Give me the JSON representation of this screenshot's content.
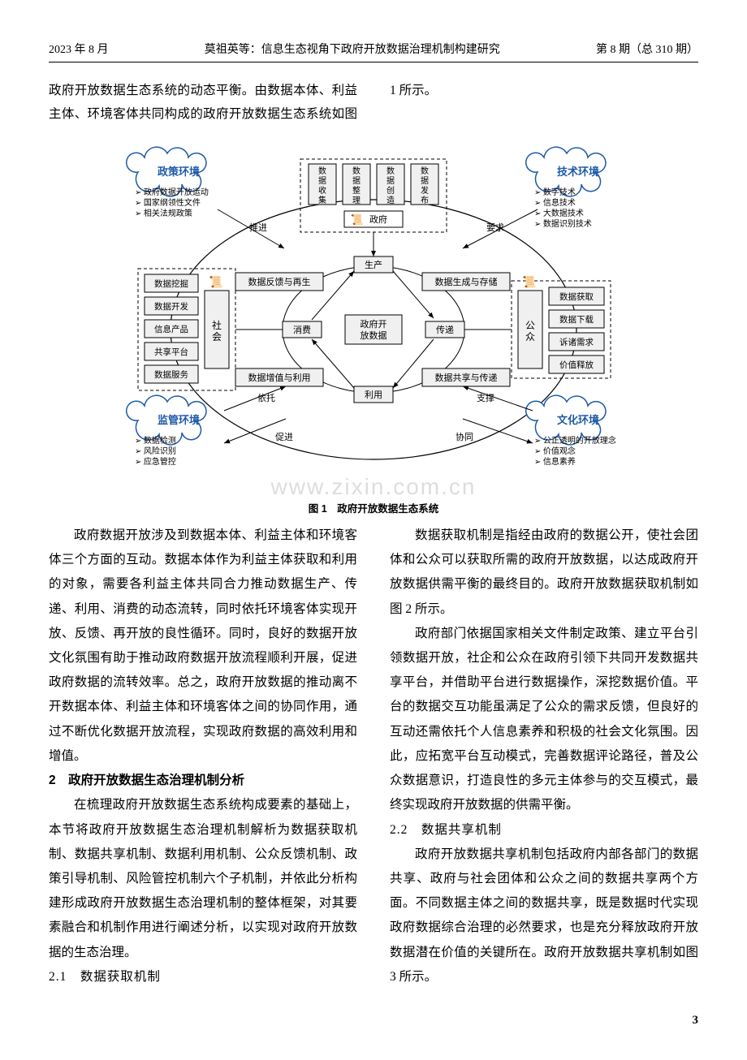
{
  "header": {
    "left": "2023 年 8 月",
    "center": "莫祖英等：信息生态视角下政府开放数据治理机制构建研究",
    "right": "第 8 期（总 310 期）"
  },
  "intro": "政府开放数据生态系统的动态平衡。由数据本体、利益主体、环境客体共同构成的政府开放数据生态系统如图 1 所示。",
  "figure": {
    "caption": "图 1　政府开放数据生态系统",
    "watermark": "www.zixin.com.cn",
    "colors": {
      "boxFill": "#f0f0f0",
      "boxStroke": "#000000",
      "line": "#000000",
      "cloudFill": "#ffffff",
      "cloudStroke": "#1e5aa8",
      "cloudText": "#1e5aa8",
      "bg": "#ffffff"
    },
    "clouds": {
      "policy": {
        "title": "政策环境",
        "items": [
          "政府数据开放运动",
          "国家纲领性文件",
          "相关法规政策"
        ]
      },
      "tech": {
        "title": "技术环境",
        "items": [
          "数字技术",
          "信息技术",
          "大数据技术",
          "数据识别技术"
        ]
      },
      "reg": {
        "title": "监管环境",
        "items": [
          "数据检测",
          "风险识别",
          "应急管控"
        ]
      },
      "culture": {
        "title": "文化环境",
        "items": [
          "公正透明的开放理念",
          "价值观念",
          "信息素养"
        ]
      }
    },
    "topBoxes": [
      "数据收集",
      "数据整理",
      "数据创造",
      "数据发布"
    ],
    "govLabel": "政府",
    "leftBoxes": [
      "数据挖掘",
      "数据开发",
      "信息产品",
      "共享平台",
      "数据服务"
    ],
    "leftLabel": "社会",
    "rightBoxes": [
      "数据获取",
      "数据下载",
      "诉诸需求",
      "价值释放"
    ],
    "rightLabel": "公众",
    "center": "政府开放数据",
    "innerNodes": {
      "top": "生产",
      "right": "传递",
      "bottom": "利用",
      "left": "消费"
    },
    "midBoxes": {
      "tl": "数据反馈与再生",
      "tr": "数据生成与存储",
      "bl": "数据增值与利用",
      "br": "数据共享与传递"
    },
    "edgeLabels": {
      "topLeft": "推进",
      "topRight": "要求",
      "botLeftUp": "依托",
      "botLeftDown": "促进",
      "botRightUp": "支撑",
      "botRightDown": "协同"
    }
  },
  "para1": "政府数据开放涉及到数据本体、利益主体和环境客体三个方面的互动。数据本体作为利益主体获取和利用的对象，需要各利益主体共同合力推动数据生产、传递、利用、消费的动态流转，同时依托环境客体实现开放、反馈、再开放的良性循环。同时，良好的数据开放文化氛围有助于推动政府数据开放流程顺利开展，促进政府数据的流转效率。总之，政府开放数据的推动离不开数据本体、利益主体和环境客体之间的协同作用，通过不断优化数据开放流程，实现政府数据的高效利用和增值。",
  "sec2": "2　政府开放数据生态治理机制分析",
  "para2": "在梳理政府开放数据生态系统构成要素的基础上，本节将政府开放数据生态治理机制解析为数据获取机制、数据共享机制、数据利用机制、公众反馈机制、政策引导机制、风险管控机制六个子机制，并依此分析构建形成政府开放数据生态治理机制的整体框架，对其要素融合和机制作用进行阐述分析，以实现对政府开放数据的生态治理。",
  "sub21": "2.1　数据获取机制",
  "para21a": "数据获取机制是指经由政府的数据公开，使社会团体和公众可以获取所需的政府开放数据，以达成政府开放数据供需平衡的最终目的。政府开放数据获取机制如图 2 所示。",
  "para21b": "政府部门依据国家相关文件制定政策、建立平台引领数据开放，社企和公众在政府引领下共同开发数据共享平台，并借助平台进行数据操作，深挖数据价值。平台的数据交互功能虽满足了公众的需求反馈，但良好的互动还需依托个人信息素养和积极的社会文化氛围。因此，应拓宽平台互动模式，完善数据评论路径，普及公众数据意识，打造良性的多元主体参与的交互模式，最终实现政府开放数据的供需平衡。",
  "sub22": "2.2　数据共享机制",
  "para22": "政府开放数据共享机制包括政府内部各部门的数据共享、政府与社会团体和公众之间的数据共享两个方面。不同数据主体之间的数据共享，既是数据时代实现政府数据综合治理的必然要求，也是充分释放政府开放数据潜在价值的关键所在。政府开放数据共享机制如图 3 所示。",
  "pageNum": "3"
}
